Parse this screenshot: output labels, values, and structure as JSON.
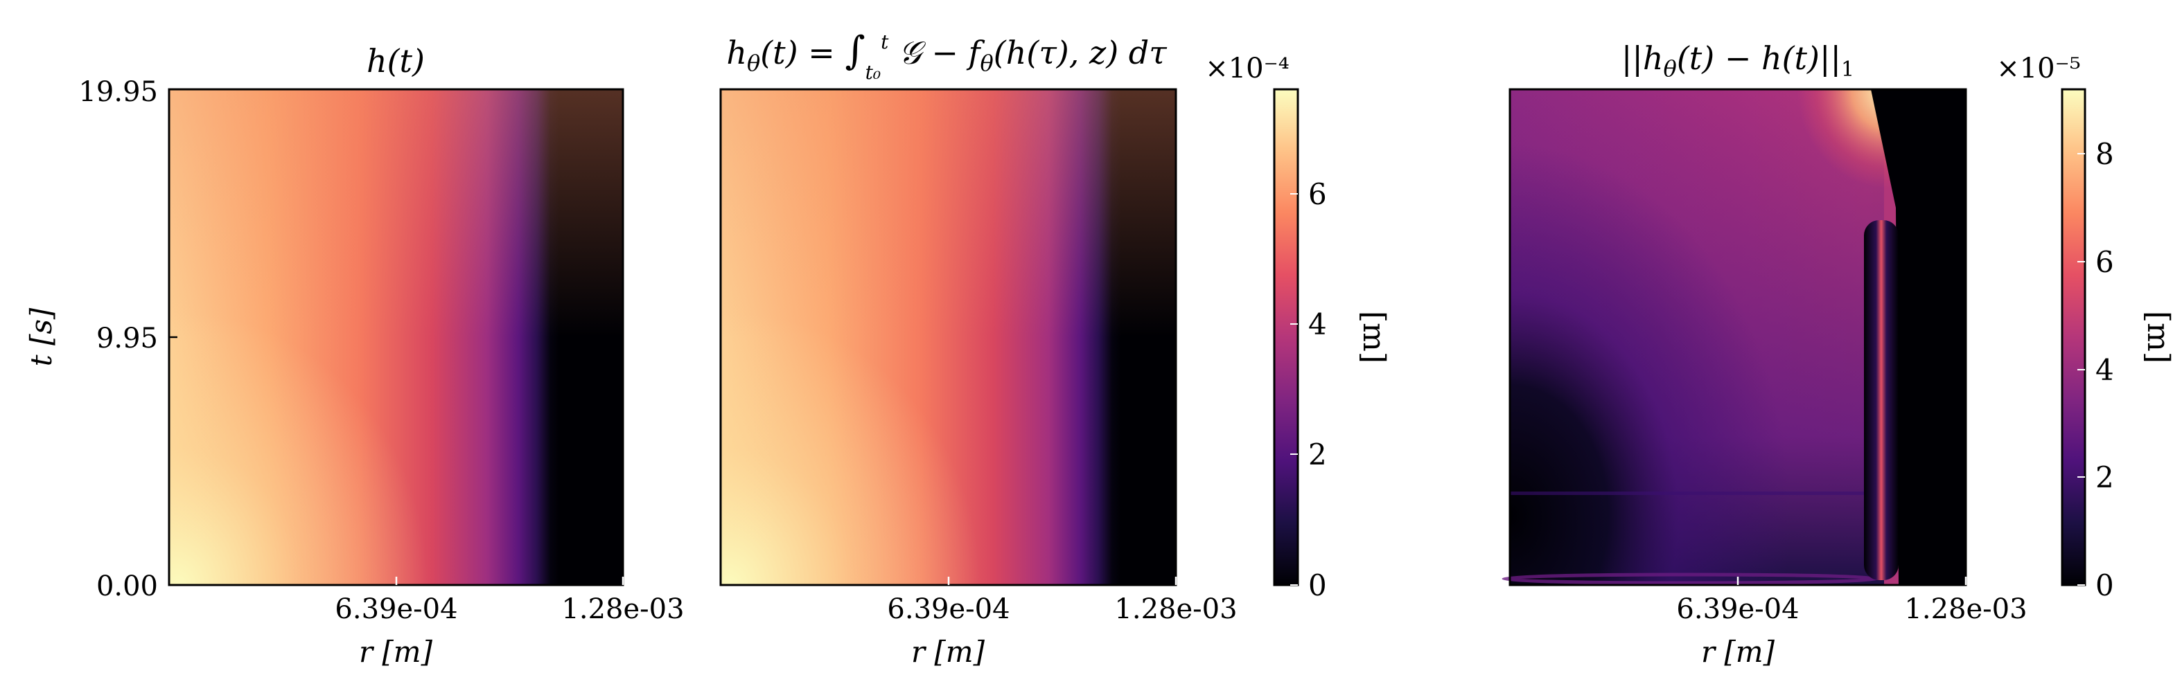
{
  "chart_data": [
    {
      "type": "heatmap",
      "title": "h(t)",
      "xlabel": "r [m]",
      "ylabel": "t [s]",
      "x_ticks": [
        "6.39e-04",
        "1.28e-03"
      ],
      "y_ticks": [
        "0.00",
        "9.95",
        "19.95"
      ],
      "x_range": [
        0,
        0.00128
      ],
      "y_range": [
        0,
        19.95
      ],
      "colormap": "magma"
    },
    {
      "type": "heatmap",
      "title": "hθ(t) = ∫ G − fθ(h(τ), z) dτ",
      "xlabel": "r [m]",
      "x_ticks": [
        "6.39e-04",
        "1.28e-03"
      ],
      "x_range": [
        0,
        0.00128
      ],
      "y_range": [
        0,
        19.95
      ],
      "colormap": "magma",
      "colorbar": {
        "label": "[m]",
        "exponent": "×10⁻⁴",
        "ticks": [
          "0",
          "2",
          "4",
          "6"
        ],
        "range": [
          0,
          7.6
        ]
      }
    },
    {
      "type": "heatmap",
      "title": "||hθ(t) − h(t)||₁",
      "xlabel": "r [m]",
      "x_ticks": [
        "6.39e-04",
        "1.28e-03"
      ],
      "x_range": [
        0,
        0.00128
      ],
      "y_range": [
        0,
        19.95
      ],
      "colormap": "magma",
      "colorbar": {
        "label": "[m]",
        "exponent": "×10⁻⁵",
        "ticks": [
          "0",
          "2",
          "4",
          "6",
          "8"
        ],
        "range": [
          0,
          9.2
        ]
      }
    }
  ]
}
